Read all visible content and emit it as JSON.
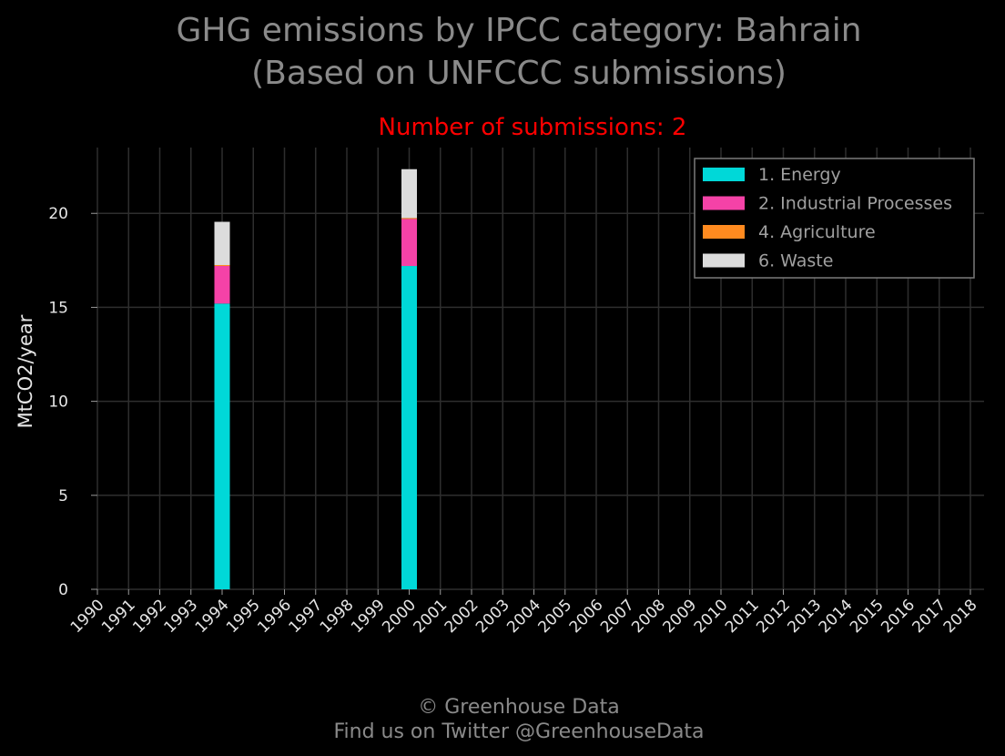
{
  "chart_data": {
    "type": "bar",
    "stacked": true,
    "title_line1": "GHG emissions by IPCC category: Bahrain",
    "title_line2": "(Based on UNFCCC submissions)",
    "subtitle": "Number of submissions: 2",
    "ylabel": "MtCO2/year",
    "xlabel": "",
    "ylim": [
      0,
      23.5
    ],
    "yticks": [
      "0",
      "5",
      "10",
      "15",
      "20"
    ],
    "ytick_values": [
      0,
      5,
      10,
      15,
      20
    ],
    "categories": [
      "1990",
      "1991",
      "1992",
      "1993",
      "1994",
      "1995",
      "1996",
      "1997",
      "1998",
      "1999",
      "2000",
      "2001",
      "2002",
      "2003",
      "2004",
      "2005",
      "2006",
      "2007",
      "2008",
      "2009",
      "2010",
      "2011",
      "2012",
      "2013",
      "2014",
      "2015",
      "2016",
      "2017",
      "2018"
    ],
    "series": [
      {
        "name": "1. Energy",
        "color": "#00d8d8",
        "values": [
          null,
          null,
          null,
          null,
          15.2,
          null,
          null,
          null,
          null,
          null,
          17.2,
          null,
          null,
          null,
          null,
          null,
          null,
          null,
          null,
          null,
          null,
          null,
          null,
          null,
          null,
          null,
          null,
          null,
          null
        ]
      },
      {
        "name": "2. Industrial Processes",
        "color": "#f542a7",
        "values": [
          null,
          null,
          null,
          null,
          2.0,
          null,
          null,
          null,
          null,
          null,
          2.5,
          null,
          null,
          null,
          null,
          null,
          null,
          null,
          null,
          null,
          null,
          null,
          null,
          null,
          null,
          null,
          null,
          null,
          null
        ]
      },
      {
        "name": "4. Agriculture",
        "color": "#ff8a1f",
        "values": [
          null,
          null,
          null,
          null,
          0.05,
          null,
          null,
          null,
          null,
          null,
          0.05,
          null,
          null,
          null,
          null,
          null,
          null,
          null,
          null,
          null,
          null,
          null,
          null,
          null,
          null,
          null,
          null,
          null,
          null
        ]
      },
      {
        "name": "6. Waste",
        "color": "#dcdcdc",
        "values": [
          null,
          null,
          null,
          null,
          2.3,
          null,
          null,
          null,
          null,
          null,
          2.6,
          null,
          null,
          null,
          null,
          null,
          null,
          null,
          null,
          null,
          null,
          null,
          null,
          null,
          null,
          null,
          null,
          null,
          null
        ]
      }
    ],
    "grid": true,
    "legend_position": "top-right"
  },
  "footer": {
    "line1": "© Greenhouse Data",
    "line2": "Find us on Twitter @GreenhouseData"
  },
  "colors": {
    "background": "#000000",
    "grid": "#2e2e2e",
    "axis": "#9a9a9a",
    "title": "#8a8a8a",
    "subtitle": "#ff0000"
  }
}
